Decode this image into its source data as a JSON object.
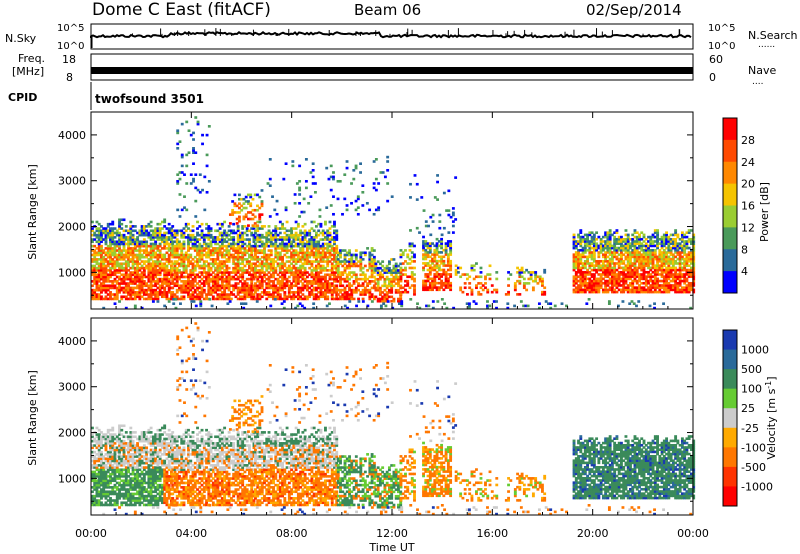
{
  "header": {
    "station": "Dome C East (fitACF)",
    "beam": "Beam 06",
    "date": "02/Sep/2014"
  },
  "status_panels": {
    "nsky_label": "N.Sky",
    "nsky_ticks": [
      "10^5",
      "10^0"
    ],
    "nsearch_label": "N.Search",
    "freq_label_1": "Freq.",
    "freq_label_2": "[MHz]",
    "freq_ticks": [
      "18",
      "8"
    ],
    "nave_ticks": [
      "60",
      "0"
    ],
    "nave_label": "Nave",
    "cpid_label": "CPID",
    "cpid_value": "twofsound 3501",
    "dotted_marker": "......",
    "nave_dotted_marker": "...."
  },
  "chart_data": [
    {
      "type": "heatmap",
      "quantity": "power",
      "ylabel": "Slant Range [km]",
      "ylim": [
        200,
        4500
      ],
      "yticks": [
        1000,
        2000,
        3000,
        4000
      ],
      "xlim_hours": [
        0,
        24
      ],
      "colorbar": {
        "label": "Power [dB]",
        "ticks": [
          "28",
          "24",
          "20",
          "16",
          "12",
          "8",
          "4"
        ],
        "colors": [
          "#ff0000",
          "#ff4a00",
          "#ff8800",
          "#f5c400",
          "#9acd32",
          "#4a9a5a",
          "#2a6a9a",
          "#0000ff"
        ]
      }
    },
    {
      "type": "heatmap",
      "quantity": "velocity",
      "ylabel": "Slant Range [km]",
      "ylim": [
        200,
        4500
      ],
      "yticks": [
        1000,
        2000,
        3000,
        4000
      ],
      "xlim_hours": [
        0,
        24
      ],
      "xlabel": "Time UT",
      "xticks": [
        "00:00",
        "04:00",
        "08:00",
        "12:00",
        "16:00",
        "20:00",
        "00:00"
      ],
      "colorbar": {
        "label": "Velocity [m s^-1]",
        "ticks": [
          "1000",
          "500",
          "100",
          "25",
          "-25",
          "-100",
          "-500",
          "-1000"
        ],
        "colors": [
          "#1a3ab0",
          "#2a6a9a",
          "#3a8a5a",
          "#66cc33",
          "#cccccc",
          "#ffaa00",
          "#ff7700",
          "#ff3300",
          "#ff0000"
        ]
      }
    }
  ]
}
